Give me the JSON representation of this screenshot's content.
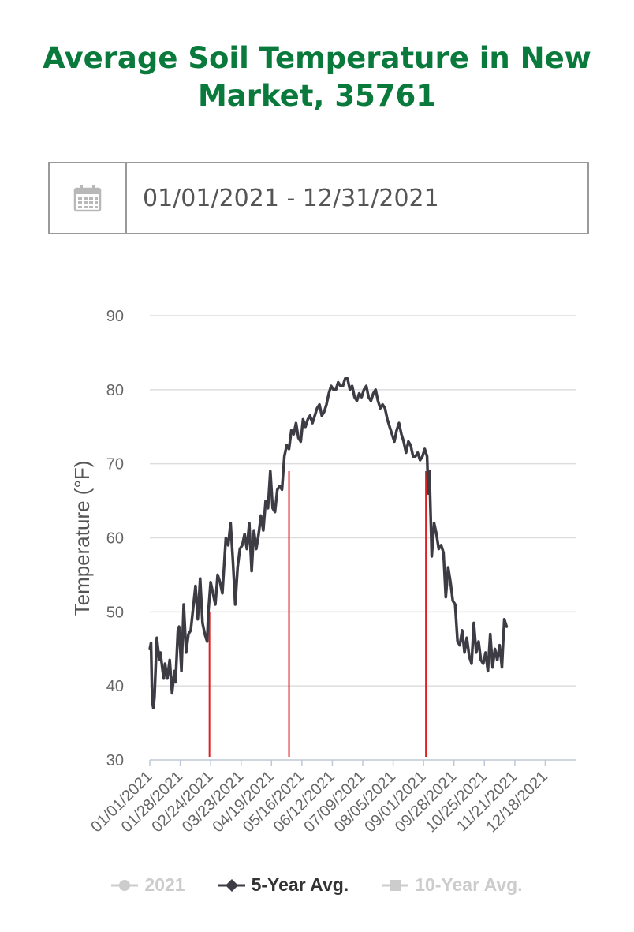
{
  "header": {
    "title": "Average Soil Temperature in New Market, 35761"
  },
  "date_range": {
    "value": "01/01/2021 - 12/31/2021",
    "icon": "calendar-icon"
  },
  "colors": {
    "title": "#0a7a3c",
    "line": "#3d3c44",
    "marker": "#e02020",
    "grid": "#dddddd",
    "legend_active": "#333333",
    "legend_inactive": "#cccccc"
  },
  "legend": [
    {
      "label": "2021",
      "active": false,
      "marker": "circle"
    },
    {
      "label": "5-Year Avg.",
      "active": true,
      "marker": "diamond"
    },
    {
      "label": "10-Year Avg.",
      "active": false,
      "marker": "square"
    }
  ],
  "chart_data": {
    "type": "line",
    "ylabel": "Temperature (°F)",
    "xlabel": "",
    "ylim": [
      30,
      90
    ],
    "yticks": [
      30,
      40,
      50,
      60,
      70,
      80,
      90
    ],
    "grid": true,
    "xlim": [
      "2021-01-01",
      "2021-12-31"
    ],
    "x_tick_labels": [
      "01/01/2021",
      "01/28/2021",
      "02/24/2021",
      "03/23/2021",
      "04/19/2021",
      "05/16/2021",
      "06/12/2021",
      "07/09/2021",
      "08/05/2021",
      "09/01/2021",
      "09/28/2021",
      "10/25/2021",
      "11/21/2021",
      "12/18/2021"
    ],
    "series": [
      {
        "name": "5-Year Avg.",
        "points": [
          [
            "2021-01-01",
            45.0
          ],
          [
            "2021-01-02",
            45.8
          ],
          [
            "2021-01-03",
            38.0
          ],
          [
            "2021-01-04",
            37.0
          ],
          [
            "2021-01-05",
            38.5
          ],
          [
            "2021-01-07",
            46.5
          ],
          [
            "2021-01-09",
            43.5
          ],
          [
            "2021-01-10",
            44.5
          ],
          [
            "2021-01-12",
            42.0
          ],
          [
            "2021-01-13",
            41.0
          ],
          [
            "2021-01-14",
            43.0
          ],
          [
            "2021-01-16",
            41.0
          ],
          [
            "2021-01-18",
            43.5
          ],
          [
            "2021-01-20",
            39.0
          ],
          [
            "2021-01-22",
            42.0
          ],
          [
            "2021-01-23",
            40.5
          ],
          [
            "2021-01-25",
            47.5
          ],
          [
            "2021-01-26",
            48.0
          ],
          [
            "2021-01-28",
            42.0
          ],
          [
            "2021-01-30",
            51.0
          ],
          [
            "2021-02-01",
            44.5
          ],
          [
            "2021-02-03",
            47.0
          ],
          [
            "2021-02-05",
            47.5
          ],
          [
            "2021-02-08",
            52.0
          ],
          [
            "2021-02-09",
            53.5
          ],
          [
            "2021-02-11",
            49.0
          ],
          [
            "2021-02-13",
            54.5
          ],
          [
            "2021-02-15",
            48.5
          ],
          [
            "2021-02-17",
            47.0
          ],
          [
            "2021-02-19",
            46.0
          ],
          [
            "2021-02-20",
            50.0
          ],
          [
            "2021-02-22",
            54.0
          ],
          [
            "2021-02-24",
            52.5
          ],
          [
            "2021-02-26",
            51.0
          ],
          [
            "2021-02-28",
            55.0
          ],
          [
            "2021-03-02",
            54.0
          ],
          [
            "2021-03-04",
            52.5
          ],
          [
            "2021-03-07",
            60.0
          ],
          [
            "2021-03-09",
            59.0
          ],
          [
            "2021-03-11",
            62.0
          ],
          [
            "2021-03-13",
            57.0
          ],
          [
            "2021-03-15",
            51.0
          ],
          [
            "2021-03-17",
            56.0
          ],
          [
            "2021-03-19",
            58.5
          ],
          [
            "2021-03-21",
            59.0
          ],
          [
            "2021-03-23",
            60.5
          ],
          [
            "2021-03-25",
            58.5
          ],
          [
            "2021-03-27",
            62.0
          ],
          [
            "2021-03-29",
            55.5
          ],
          [
            "2021-03-31",
            61.0
          ],
          [
            "2021-04-02",
            58.5
          ],
          [
            "2021-04-04",
            60.5
          ],
          [
            "2021-04-06",
            63.0
          ],
          [
            "2021-04-08",
            61.0
          ],
          [
            "2021-04-10",
            65.0
          ],
          [
            "2021-04-12",
            64.0
          ],
          [
            "2021-04-14",
            69.0
          ],
          [
            "2021-04-16",
            64.0
          ],
          [
            "2021-04-18",
            63.5
          ],
          [
            "2021-04-20",
            66.5
          ],
          [
            "2021-04-22",
            67.0
          ],
          [
            "2021-04-24",
            66.5
          ],
          [
            "2021-04-26",
            71.0
          ],
          [
            "2021-04-28",
            72.5
          ],
          [
            "2021-04-30",
            72.0
          ],
          [
            "2021-05-02",
            74.5
          ],
          [
            "2021-05-04",
            74.0
          ],
          [
            "2021-05-06",
            75.5
          ],
          [
            "2021-05-08",
            73.5
          ],
          [
            "2021-05-10",
            73.0
          ],
          [
            "2021-05-12",
            76.0
          ],
          [
            "2021-05-14",
            75.0
          ],
          [
            "2021-05-16",
            76.0
          ],
          [
            "2021-05-18",
            76.5
          ],
          [
            "2021-05-20",
            75.5
          ],
          [
            "2021-05-22",
            76.5
          ],
          [
            "2021-05-24",
            77.5
          ],
          [
            "2021-05-26",
            78.0
          ],
          [
            "2021-05-28",
            76.5
          ],
          [
            "2021-05-30",
            77.0
          ],
          [
            "2021-06-01",
            78.0
          ],
          [
            "2021-06-03",
            79.5
          ],
          [
            "2021-06-05",
            80.5
          ],
          [
            "2021-06-07",
            80.0
          ],
          [
            "2021-06-09",
            80.0
          ],
          [
            "2021-06-11",
            81.0
          ],
          [
            "2021-06-13",
            80.5
          ],
          [
            "2021-06-15",
            80.5
          ],
          [
            "2021-06-17",
            81.5
          ],
          [
            "2021-06-19",
            81.5
          ],
          [
            "2021-06-21",
            80.0
          ],
          [
            "2021-06-23",
            80.5
          ],
          [
            "2021-06-25",
            79.0
          ],
          [
            "2021-06-27",
            78.5
          ],
          [
            "2021-06-29",
            79.5
          ],
          [
            "2021-07-01",
            79.0
          ],
          [
            "2021-07-03",
            80.0
          ],
          [
            "2021-07-05",
            80.5
          ],
          [
            "2021-07-07",
            79.0
          ],
          [
            "2021-07-09",
            78.5
          ],
          [
            "2021-07-11",
            79.5
          ],
          [
            "2021-07-13",
            80.0
          ],
          [
            "2021-07-15",
            78.5
          ],
          [
            "2021-07-17",
            77.5
          ],
          [
            "2021-07-19",
            78.0
          ],
          [
            "2021-07-21",
            77.5
          ],
          [
            "2021-07-23",
            76.0
          ],
          [
            "2021-07-25",
            75.0
          ],
          [
            "2021-07-27",
            74.0
          ],
          [
            "2021-07-29",
            73.0
          ],
          [
            "2021-07-31",
            74.5
          ],
          [
            "2021-08-02",
            75.5
          ],
          [
            "2021-08-04",
            74.0
          ],
          [
            "2021-08-06",
            73.0
          ],
          [
            "2021-08-08",
            71.5
          ],
          [
            "2021-08-10",
            73.0
          ],
          [
            "2021-08-12",
            72.5
          ],
          [
            "2021-08-14",
            71.0
          ],
          [
            "2021-08-16",
            71.0
          ],
          [
            "2021-08-18",
            71.5
          ],
          [
            "2021-08-20",
            70.5
          ],
          [
            "2021-08-22",
            71.0
          ],
          [
            "2021-08-24",
            72.0
          ],
          [
            "2021-08-26",
            71.0
          ],
          [
            "2021-08-27",
            66.0
          ],
          [
            "2021-08-28",
            69.0
          ],
          [
            "2021-08-30",
            57.5
          ],
          [
            "2021-09-01",
            62.0
          ],
          [
            "2021-09-03",
            60.5
          ],
          [
            "2021-09-05",
            58.5
          ],
          [
            "2021-09-07",
            59.0
          ],
          [
            "2021-09-09",
            58.0
          ],
          [
            "2021-09-11",
            52.0
          ],
          [
            "2021-09-13",
            56.0
          ],
          [
            "2021-09-15",
            54.0
          ],
          [
            "2021-09-17",
            51.5
          ],
          [
            "2021-09-19",
            51.0
          ],
          [
            "2021-09-21",
            46.0
          ],
          [
            "2021-09-23",
            45.5
          ],
          [
            "2021-09-25",
            47.5
          ],
          [
            "2021-09-27",
            44.5
          ],
          [
            "2021-09-29",
            46.5
          ],
          [
            "2021-10-01",
            44.0
          ],
          [
            "2021-10-03",
            43.0
          ],
          [
            "2021-10-05",
            48.5
          ],
          [
            "2021-10-07",
            44.5
          ],
          [
            "2021-10-09",
            46.0
          ],
          [
            "2021-10-11",
            43.5
          ],
          [
            "2021-10-13",
            43.0
          ],
          [
            "2021-10-15",
            44.5
          ],
          [
            "2021-10-17",
            42.0
          ],
          [
            "2021-10-19",
            47.0
          ],
          [
            "2021-10-21",
            42.5
          ],
          [
            "2021-10-23",
            45.0
          ],
          [
            "2021-10-25",
            43.5
          ],
          [
            "2021-10-27",
            45.5
          ],
          [
            "2021-10-29",
            42.5
          ],
          [
            "2021-10-31",
            49.0
          ],
          [
            "2021-11-02",
            48.0
          ]
        ]
      }
    ],
    "markers": [
      {
        "x": "2021-02-21",
        "y": 50.0
      },
      {
        "x": "2021-04-30",
        "y": 69.0
      },
      {
        "x": "2021-08-25",
        "y": 69.0
      }
    ]
  }
}
